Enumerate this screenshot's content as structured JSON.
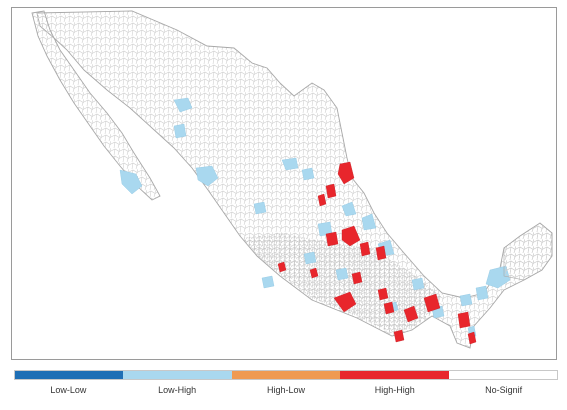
{
  "legend": {
    "items": [
      {
        "label": "Low-Low",
        "color": "#1f6fb5"
      },
      {
        "label": "Low-High",
        "color": "#a9d8ef"
      },
      {
        "label": "High-Low",
        "color": "#ef9a52"
      },
      {
        "label": "High-High",
        "color": "#e8262c"
      },
      {
        "label": "No-Signif",
        "color": "#ffffff"
      }
    ]
  },
  "map": {
    "border_color": "#bdbdbd",
    "background": "#ffffff"
  }
}
